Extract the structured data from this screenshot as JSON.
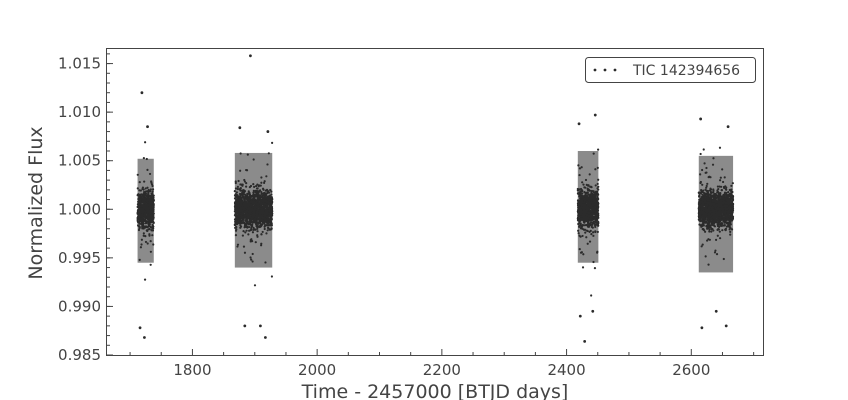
{
  "chart_data": {
    "type": "scatter",
    "title": "",
    "xlabel": "Time - 2457000 [BTJD days]",
    "ylabel": "Normalized Flux",
    "xlim": [
      1663,
      2715
    ],
    "ylim": [
      0.985,
      1.0165
    ],
    "xticks": [
      1800,
      2000,
      2200,
      2400,
      2600
    ],
    "yticks": [
      0.985,
      0.99,
      0.995,
      1.0,
      1.005,
      1.01,
      1.015
    ],
    "ytick_labels": [
      "0.985",
      "0.990",
      "0.995",
      "1.000",
      "1.005",
      "1.010",
      "1.015"
    ],
    "grid": false,
    "legend_position": "top-right",
    "marker_color": "#2b2b2b",
    "series": [
      {
        "name": "TIC 142394656",
        "segments": [
          {
            "x_start": 1712,
            "x_end": 1738,
            "median": 1.0,
            "scatter": 0.0023,
            "dense_min": 0.9945,
            "dense_max": 1.0052
          },
          {
            "x_start": 1868,
            "x_end": 1928,
            "median": 1.0,
            "scatter": 0.0024,
            "dense_min": 0.994,
            "dense_max": 1.0058
          },
          {
            "x_start": 2418,
            "x_end": 2451,
            "median": 1.0,
            "scatter": 0.0025,
            "dense_min": 0.9945,
            "dense_max": 1.006
          },
          {
            "x_start": 2612,
            "x_end": 2667,
            "median": 1.0,
            "scatter": 0.0023,
            "dense_min": 0.9935,
            "dense_max": 1.0055
          }
        ],
        "extreme_points": [
          {
            "x": 1719,
            "y": 1.012
          },
          {
            "x": 1723,
            "y": 0.9868
          },
          {
            "x": 1716,
            "y": 0.9878
          },
          {
            "x": 1728,
            "y": 1.0085
          },
          {
            "x": 1876,
            "y": 1.0084
          },
          {
            "x": 1893,
            "y": 1.0158
          },
          {
            "x": 1884,
            "y": 0.988
          },
          {
            "x": 1917,
            "y": 0.9868
          },
          {
            "x": 1909,
            "y": 0.988
          },
          {
            "x": 1921,
            "y": 1.008
          },
          {
            "x": 2420,
            "y": 1.0088
          },
          {
            "x": 2429,
            "y": 0.9864
          },
          {
            "x": 2422,
            "y": 0.989
          },
          {
            "x": 2442,
            "y": 0.9895
          },
          {
            "x": 2446,
            "y": 1.0097
          },
          {
            "x": 2615,
            "y": 1.0093
          },
          {
            "x": 2617,
            "y": 0.9878
          },
          {
            "x": 2640,
            "y": 0.9895
          },
          {
            "x": 2656,
            "y": 0.988
          },
          {
            "x": 2659,
            "y": 1.0085
          }
        ]
      }
    ]
  }
}
